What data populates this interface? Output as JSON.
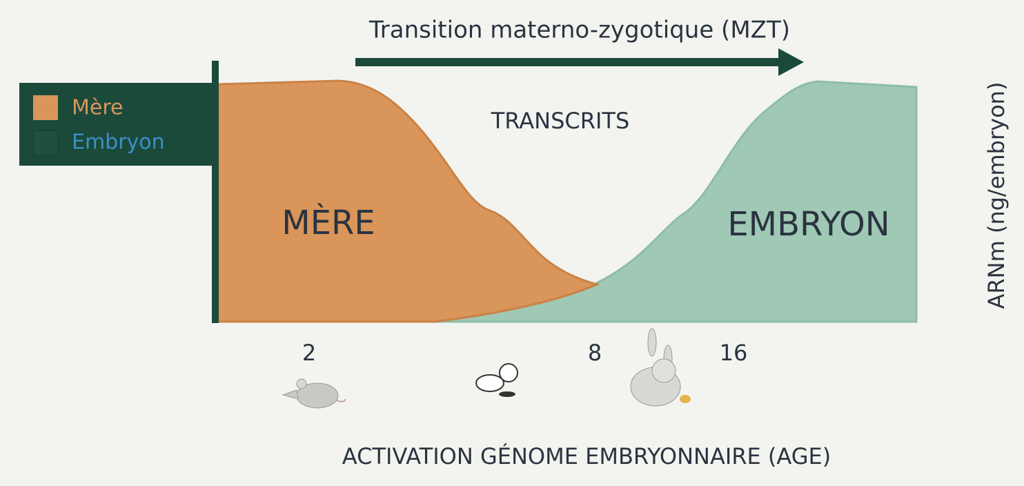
{
  "title": "Transition materno-zygotique (MZT)",
  "center_label": "TRANSCRITS",
  "legend": [
    "Mère",
    "Embryon"
  ],
  "areas": [
    "MÈRE",
    "EMBRYON"
  ],
  "stages": [
    2,
    8,
    16
  ],
  "y_label": "ARNm (ng/embryon)",
  "x_label": "ACTIVATION GÉNOME EMBRYONNAIRE (AGE)"
}
